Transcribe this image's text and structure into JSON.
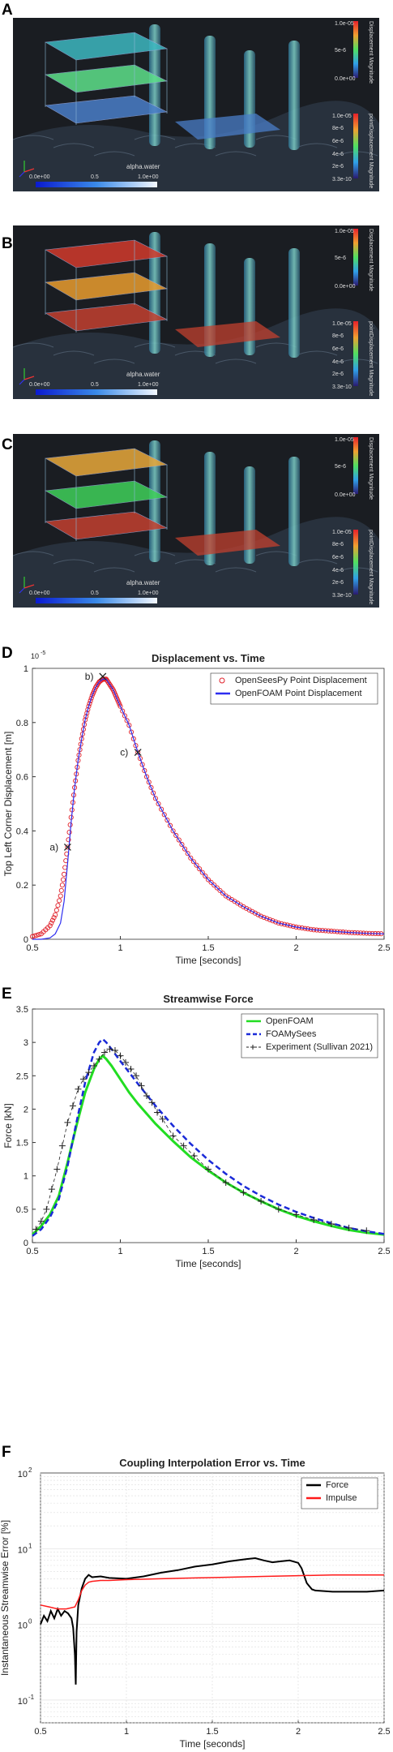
{
  "panels": {
    "a": {
      "letter": "A"
    },
    "b": {
      "letter": "B"
    },
    "c": {
      "letter": "C"
    },
    "d": {
      "letter": "D"
    },
    "e": {
      "letter": "E"
    },
    "f": {
      "letter": "F"
    }
  },
  "renders": {
    "colorbar_top": {
      "title": "Displacement Magnitude",
      "ticks": [
        "1.0e-05",
        "5e-6",
        "0.0e+00"
      ]
    },
    "colorbar_bottom": {
      "title": "pointDisplacement Magnitude",
      "ticks": [
        "1.0e-05",
        "8e-6",
        "6e-6",
        "4e-6",
        "2e-6",
        "3.3e-10"
      ]
    },
    "alpha_bar": {
      "title": "alpha.water",
      "ticks": [
        "0.0e+00",
        "0.5",
        "1.0e+00"
      ]
    },
    "colors": {
      "floor_a": [
        "#3db7c0",
        "#5de08a",
        "#4a7ec8"
      ],
      "floor_b": [
        "#d23a2c",
        "#e99c2e",
        "#c2402f"
      ],
      "floor_c": [
        "#e8a83a",
        "#3fd05a",
        "#c2402f"
      ]
    }
  },
  "chart_data": [
    {
      "type": "scatter",
      "title": "Displacement vs. Time",
      "xlabel": "Time [seconds]",
      "ylabel": "Top Left Corner Displacement [m]",
      "y_exponent": "-5",
      "xlim": [
        0.5,
        2.5
      ],
      "ylim": [
        0,
        1.0
      ],
      "xticks": [
        "0.5",
        "1",
        "1.5",
        "2",
        "2.5"
      ],
      "yticks": [
        "0",
        "0.2",
        "0.4",
        "0.6",
        "0.8",
        "1"
      ],
      "legend_position": "top-right",
      "grid": false,
      "series": [
        {
          "name": "OpenSeesPy Point Displacement",
          "style": "circles",
          "color": "#e0202a",
          "x": [
            0.5,
            0.55,
            0.6,
            0.63,
            0.66,
            0.68,
            0.7,
            0.72,
            0.74,
            0.76,
            0.78,
            0.8,
            0.82,
            0.84,
            0.86,
            0.88,
            0.9,
            0.92,
            0.94,
            0.96,
            0.98,
            1.0,
            1.05,
            1.1,
            1.15,
            1.2,
            1.3,
            1.4,
            1.5,
            1.6,
            1.7,
            1.8,
            1.9,
            2.0,
            2.1,
            2.2,
            2.3,
            2.4,
            2.5
          ],
          "y": [
            0.01,
            0.02,
            0.05,
            0.09,
            0.16,
            0.24,
            0.34,
            0.45,
            0.56,
            0.66,
            0.74,
            0.81,
            0.86,
            0.9,
            0.93,
            0.95,
            0.96,
            0.96,
            0.94,
            0.92,
            0.89,
            0.86,
            0.79,
            0.69,
            0.6,
            0.52,
            0.4,
            0.3,
            0.22,
            0.16,
            0.12,
            0.085,
            0.06,
            0.045,
            0.035,
            0.03,
            0.025,
            0.022,
            0.02
          ]
        },
        {
          "name": "OpenFOAM Point Displacement",
          "style": "line",
          "color": "#2e2ef0",
          "x": [
            0.5,
            0.55,
            0.6,
            0.63,
            0.66,
            0.68,
            0.7,
            0.72,
            0.74,
            0.76,
            0.78,
            0.8,
            0.82,
            0.84,
            0.86,
            0.88,
            0.9,
            0.92,
            0.94,
            0.96,
            0.98,
            1.0,
            1.05,
            1.1,
            1.15,
            1.2,
            1.3,
            1.4,
            1.5,
            1.6,
            1.7,
            1.8,
            1.9,
            2.0,
            2.1,
            2.2,
            2.3,
            2.4,
            2.5
          ],
          "y": [
            0.0,
            0.0,
            0.005,
            0.02,
            0.06,
            0.14,
            0.28,
            0.43,
            0.56,
            0.66,
            0.74,
            0.81,
            0.86,
            0.9,
            0.93,
            0.95,
            0.96,
            0.96,
            0.94,
            0.92,
            0.89,
            0.86,
            0.79,
            0.69,
            0.6,
            0.52,
            0.4,
            0.3,
            0.22,
            0.16,
            0.12,
            0.085,
            0.06,
            0.045,
            0.035,
            0.03,
            0.025,
            0.022,
            0.02
          ]
        }
      ],
      "annotations": [
        {
          "text": "a)",
          "x": 0.7,
          "y": 0.34
        },
        {
          "text": "b)",
          "x": 0.9,
          "y": 0.97
        },
        {
          "text": "c)",
          "x": 1.1,
          "y": 0.69
        }
      ]
    },
    {
      "type": "line",
      "title": "Streamwise Force",
      "xlabel": "Time [seconds]",
      "ylabel": "Force [kN]",
      "xlim": [
        0.5,
        2.5
      ],
      "ylim": [
        0,
        3.5
      ],
      "xticks": [
        "0.5",
        "1",
        "1.5",
        "2",
        "2.5"
      ],
      "yticks": [
        "0",
        "0.5",
        "1",
        "1.5",
        "2",
        "2.5",
        "3",
        "3.5"
      ],
      "legend_position": "top-right",
      "grid": false,
      "series": [
        {
          "name": "OpenFOAM",
          "style": "solid",
          "color": "#22dd22",
          "x": [
            0.5,
            0.55,
            0.6,
            0.65,
            0.7,
            0.75,
            0.8,
            0.85,
            0.88,
            0.9,
            0.92,
            0.95,
            1.0,
            1.05,
            1.1,
            1.2,
            1.3,
            1.4,
            1.5,
            1.6,
            1.7,
            1.8,
            1.9,
            2.0,
            2.1,
            2.2,
            2.3,
            2.4,
            2.5
          ],
          "y": [
            0.12,
            0.25,
            0.42,
            0.7,
            1.2,
            1.75,
            2.25,
            2.6,
            2.75,
            2.8,
            2.75,
            2.65,
            2.45,
            2.25,
            2.08,
            1.78,
            1.52,
            1.28,
            1.08,
            0.9,
            0.75,
            0.62,
            0.5,
            0.4,
            0.32,
            0.25,
            0.19,
            0.15,
            0.12
          ]
        },
        {
          "name": "FOAMySees",
          "style": "dashed",
          "color": "#1a2ad8",
          "x": [
            0.5,
            0.55,
            0.6,
            0.65,
            0.7,
            0.75,
            0.8,
            0.85,
            0.88,
            0.9,
            0.92,
            0.95,
            1.0,
            1.05,
            1.1,
            1.2,
            1.3,
            1.4,
            1.5,
            1.6,
            1.7,
            1.8,
            1.9,
            2.0,
            2.1,
            2.2,
            2.3,
            2.4,
            2.5
          ],
          "y": [
            0.1,
            0.2,
            0.38,
            0.65,
            1.15,
            1.8,
            2.4,
            2.85,
            3.0,
            3.05,
            3.0,
            2.9,
            2.72,
            2.55,
            2.38,
            2.05,
            1.75,
            1.48,
            1.24,
            1.03,
            0.85,
            0.7,
            0.57,
            0.46,
            0.37,
            0.29,
            0.22,
            0.17,
            0.13
          ]
        },
        {
          "name": "Experiment (Sullivan 2021)",
          "style": "plus",
          "color": "#222222",
          "x": [
            0.52,
            0.55,
            0.58,
            0.61,
            0.64,
            0.67,
            0.7,
            0.73,
            0.76,
            0.79,
            0.82,
            0.85,
            0.88,
            0.91,
            0.94,
            0.97,
            1.0,
            1.03,
            1.06,
            1.09,
            1.12,
            1.15,
            1.18,
            1.21,
            1.24,
            1.3,
            1.36,
            1.42,
            1.5,
            1.6,
            1.7,
            1.8,
            1.9,
            2.0,
            2.1,
            2.2,
            2.3,
            2.4
          ],
          "y": [
            0.2,
            0.32,
            0.5,
            0.8,
            1.1,
            1.45,
            1.8,
            2.05,
            2.3,
            2.45,
            2.55,
            2.65,
            2.75,
            2.85,
            2.9,
            2.88,
            2.8,
            2.7,
            2.6,
            2.5,
            2.35,
            2.2,
            2.1,
            1.95,
            1.85,
            1.6,
            1.45,
            1.3,
            1.1,
            0.9,
            0.75,
            0.62,
            0.5,
            0.42,
            0.34,
            0.28,
            0.22,
            0.18
          ]
        }
      ]
    },
    {
      "type": "line",
      "title": "Coupling Interpolation Error vs. Time",
      "xlabel": "Time [seconds]",
      "ylabel": "Instantaneous Streamwise Error [%]",
      "yscale": "log",
      "xlim": [
        0.5,
        2.5
      ],
      "ylim": [
        0.05,
        100
      ],
      "xticks": [
        "0.5",
        "1",
        "1.5",
        "2",
        "2.5"
      ],
      "ytick_values": [
        0.1,
        1,
        10,
        100
      ],
      "ytick_bases": [
        "10",
        "10",
        "10",
        "10"
      ],
      "ytick_exponents": [
        "-1",
        "0",
        "1",
        "2"
      ],
      "legend_position": "top-right",
      "grid": true,
      "series": [
        {
          "name": "Force",
          "style": "solid",
          "color": "#000000",
          "x": [
            0.5,
            0.52,
            0.54,
            0.56,
            0.58,
            0.6,
            0.62,
            0.64,
            0.66,
            0.68,
            0.69,
            0.7,
            0.705,
            0.71,
            0.72,
            0.74,
            0.76,
            0.78,
            0.8,
            0.85,
            0.9,
            1.0,
            1.1,
            1.2,
            1.3,
            1.4,
            1.5,
            1.6,
            1.7,
            1.75,
            1.8,
            1.85,
            1.9,
            1.95,
            2.0,
            2.02,
            2.05,
            2.08,
            2.1,
            2.2,
            2.3,
            2.4,
            2.5
          ],
          "y": [
            1.0,
            1.3,
            1.1,
            1.5,
            1.2,
            1.6,
            1.3,
            1.5,
            1.4,
            1.2,
            0.9,
            0.4,
            0.16,
            0.8,
            1.8,
            3.0,
            4.0,
            4.5,
            4.2,
            4.3,
            4.1,
            4.0,
            4.3,
            4.8,
            5.2,
            5.8,
            6.2,
            6.8,
            7.3,
            7.5,
            7.0,
            6.6,
            6.8,
            7.0,
            6.5,
            5.5,
            3.5,
            2.9,
            2.8,
            2.7,
            2.7,
            2.7,
            2.8
          ]
        },
        {
          "name": "Impulse",
          "style": "solid",
          "color": "#ff1a1a",
          "x": [
            0.5,
            0.55,
            0.6,
            0.65,
            0.7,
            0.72,
            0.74,
            0.76,
            0.78,
            0.8,
            0.85,
            0.9,
            1.0,
            1.2,
            1.4,
            1.6,
            1.8,
            2.0,
            2.2,
            2.4,
            2.5
          ],
          "y": [
            1.8,
            1.7,
            1.6,
            1.6,
            1.7,
            2.1,
            2.8,
            3.3,
            3.6,
            3.7,
            3.8,
            3.8,
            3.9,
            4.0,
            4.1,
            4.2,
            4.3,
            4.4,
            4.5,
            4.5,
            4.5
          ]
        }
      ]
    }
  ]
}
